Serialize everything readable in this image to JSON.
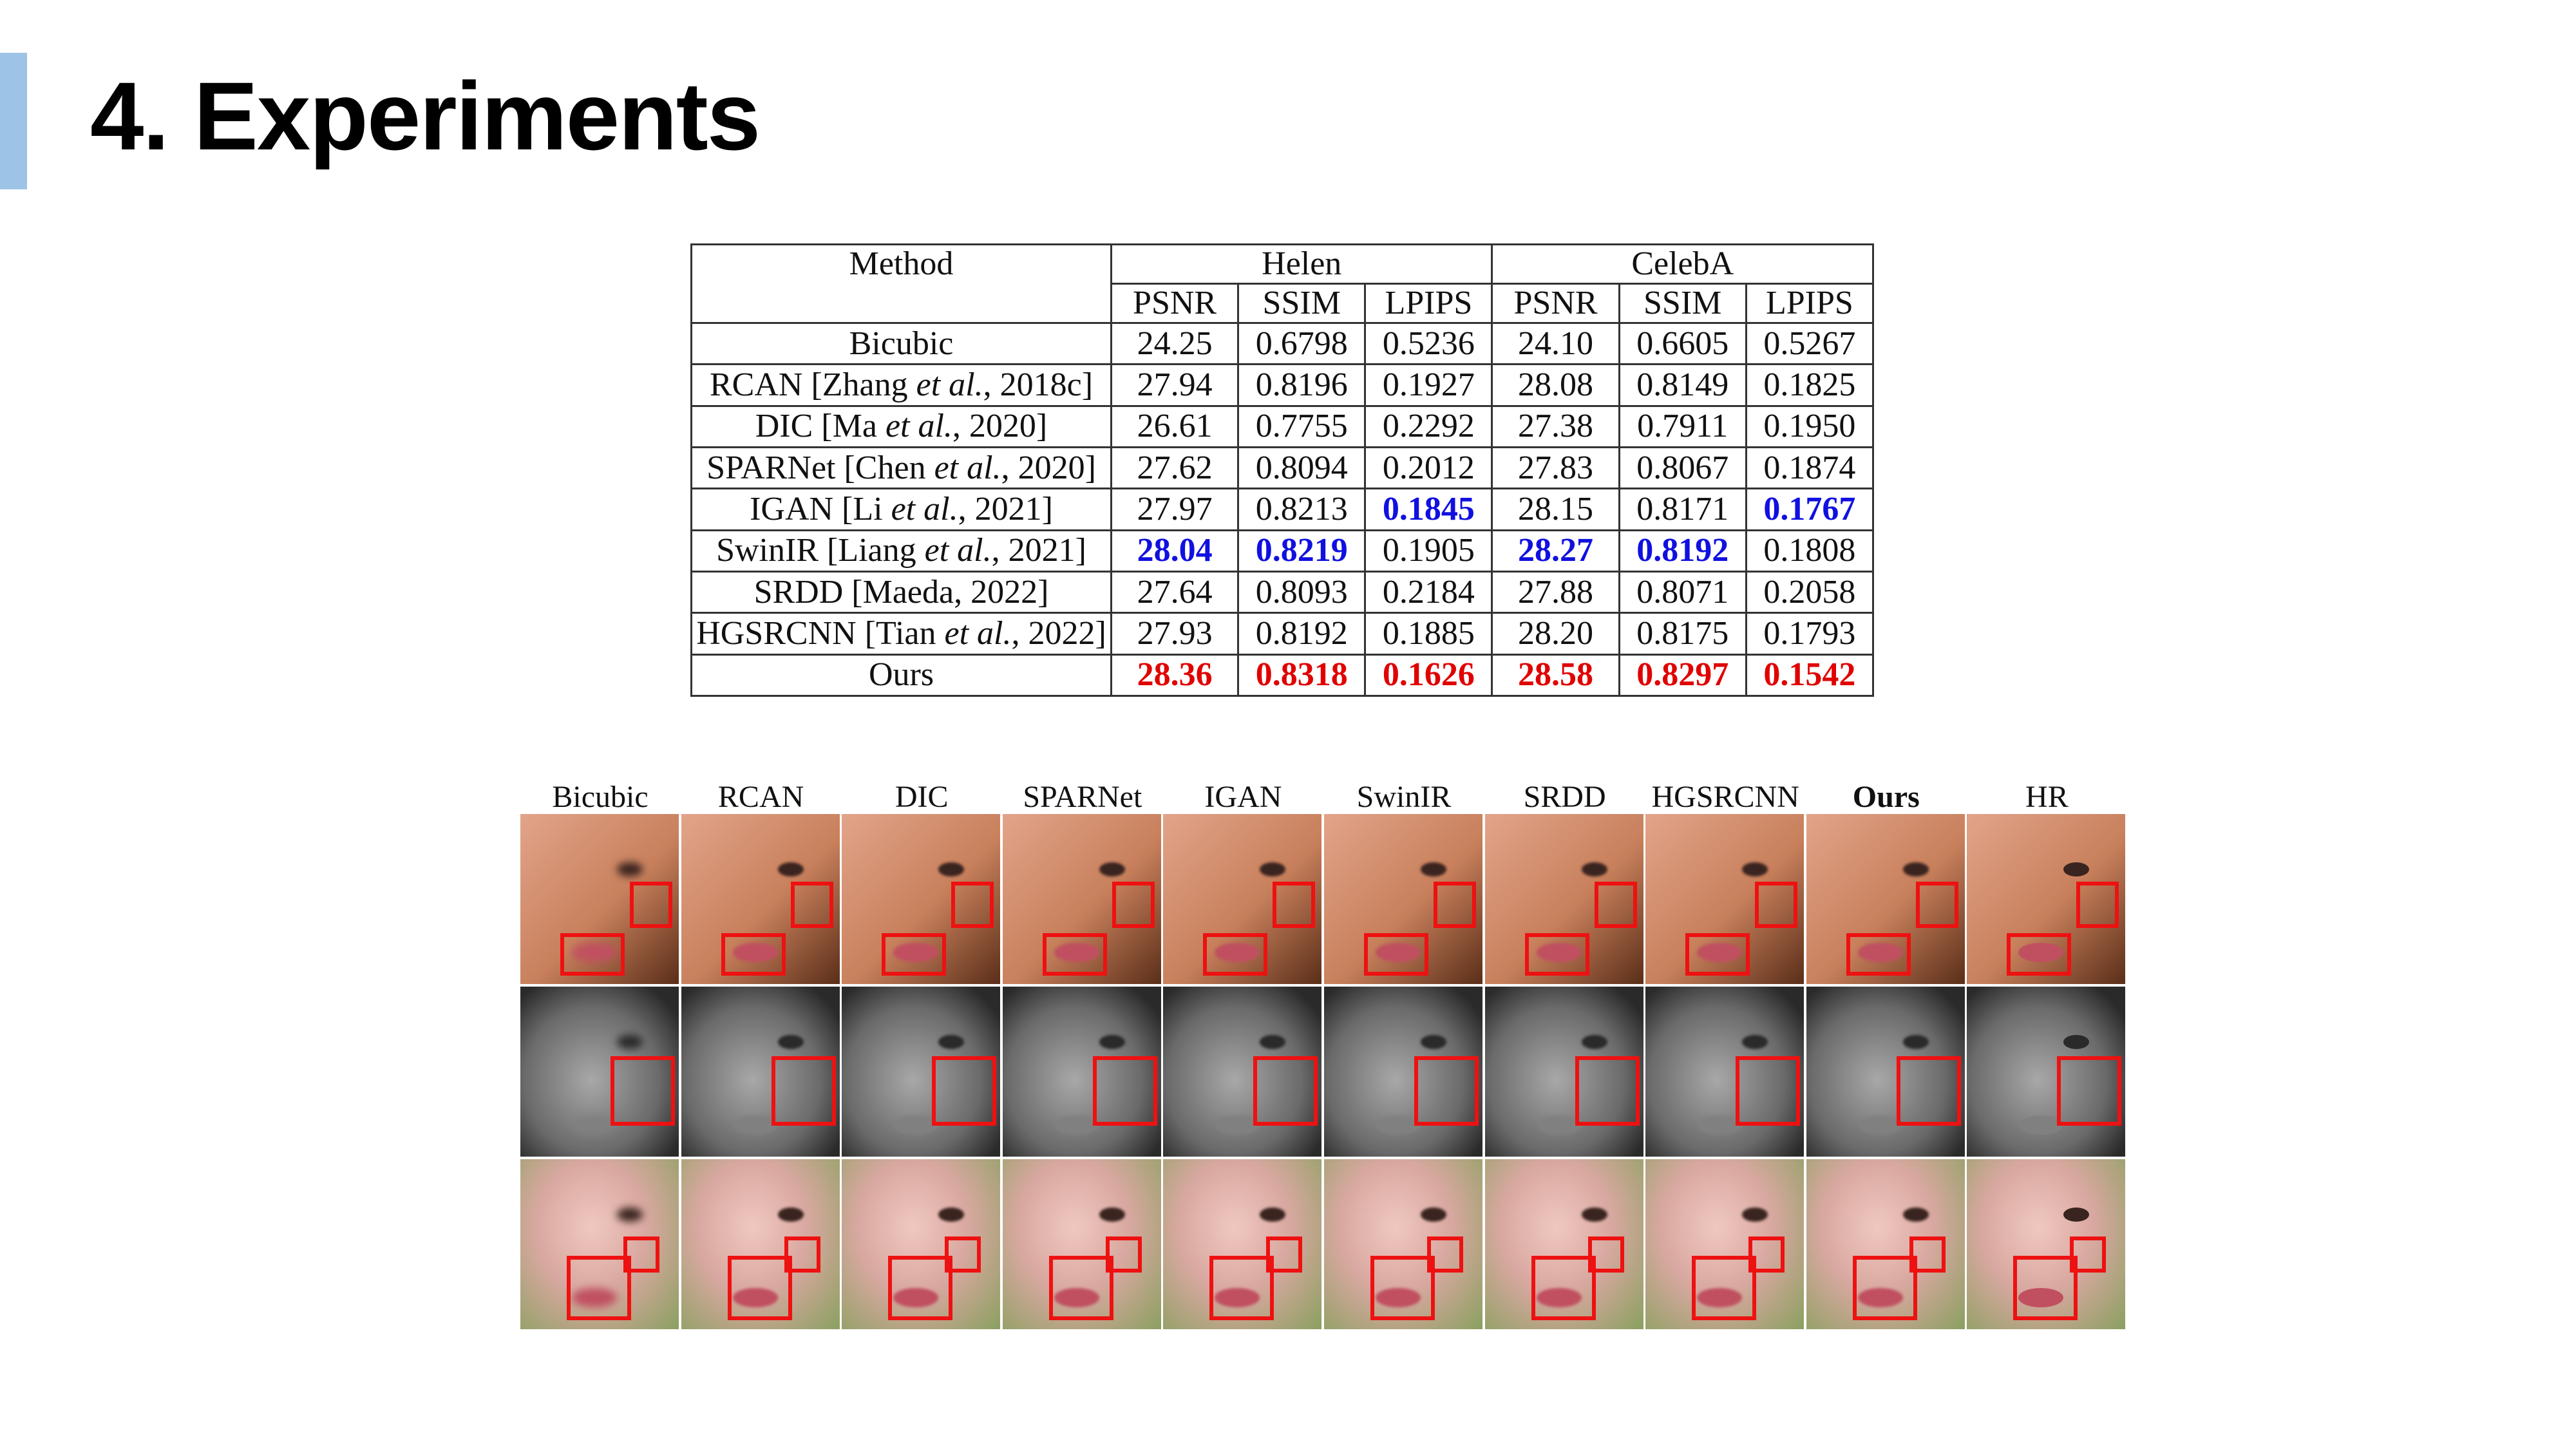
{
  "slide": {
    "title": "4. Experiments",
    "accent_color": "#9dc3e6"
  },
  "table": {
    "header": {
      "method": "Method",
      "group1": "Helen",
      "group2": "CelebA",
      "metrics": [
        "PSNR",
        "SSIM",
        "LPIPS",
        "PSNR",
        "SSIM",
        "LPIPS"
      ]
    },
    "rows": [
      {
        "method_pre": "Bicubic",
        "method_em": "",
        "method_post": "",
        "values": [
          "24.25",
          "0.6798",
          "0.5236",
          "24.10",
          "0.6605",
          "0.5267"
        ],
        "styles": [
          "",
          "",
          "",
          "",
          "",
          ""
        ]
      },
      {
        "method_pre": "RCAN [Zhang ",
        "method_em": "et al.",
        "method_post": ", 2018c]",
        "values": [
          "27.94",
          "0.8196",
          "0.1927",
          "28.08",
          "0.8149",
          "0.1825"
        ],
        "styles": [
          "",
          "",
          "",
          "",
          "",
          ""
        ]
      },
      {
        "method_pre": "DIC [Ma ",
        "method_em": "et al.",
        "method_post": ", 2020]",
        "values": [
          "26.61",
          "0.7755",
          "0.2292",
          "27.38",
          "0.7911",
          "0.1950"
        ],
        "styles": [
          "",
          "",
          "",
          "",
          "",
          ""
        ]
      },
      {
        "method_pre": "SPARNet [Chen ",
        "method_em": "et al.",
        "method_post": ", 2020]",
        "values": [
          "27.62",
          "0.8094",
          "0.2012",
          "27.83",
          "0.8067",
          "0.1874"
        ],
        "styles": [
          "",
          "",
          "",
          "",
          "",
          ""
        ]
      },
      {
        "method_pre": "IGAN [Li ",
        "method_em": "et al.",
        "method_post": ", 2021]",
        "values": [
          "27.97",
          "0.8213",
          "0.1845",
          "28.15",
          "0.8171",
          "0.1767"
        ],
        "styles": [
          "",
          "",
          "second",
          "",
          "",
          "second"
        ]
      },
      {
        "method_pre": "SwinIR [Liang ",
        "method_em": "et al.",
        "method_post": ", 2021]",
        "values": [
          "28.04",
          "0.8219",
          "0.1905",
          "28.27",
          "0.8192",
          "0.1808"
        ],
        "styles": [
          "second",
          "second",
          "",
          "second",
          "second",
          ""
        ]
      },
      {
        "method_pre": "SRDD [Maeda, 2022]",
        "method_em": "",
        "method_post": "",
        "values": [
          "27.64",
          "0.8093",
          "0.2184",
          "27.88",
          "0.8071",
          "0.2058"
        ],
        "styles": [
          "",
          "",
          "",
          "",
          "",
          ""
        ]
      },
      {
        "method_pre": "HGSRCNN [Tian ",
        "method_em": "et al.",
        "method_post": ", 2022]",
        "values": [
          "27.93",
          "0.8192",
          "0.1885",
          "28.20",
          "0.8175",
          "0.1793"
        ],
        "styles": [
          "",
          "",
          "",
          "",
          "",
          ""
        ]
      },
      {
        "method_pre": "Ours",
        "method_em": "",
        "method_post": "",
        "values": [
          "28.36",
          "0.8318",
          "0.1626",
          "28.58",
          "0.8297",
          "0.1542"
        ],
        "styles": [
          "best",
          "best",
          "best",
          "best",
          "best",
          "best"
        ]
      }
    ]
  },
  "comparison": {
    "column_labels": [
      "Bicubic",
      "RCAN",
      "DIC",
      "SPARNet",
      "IGAN",
      "SwinIR",
      "SRDD",
      "HGSRCNN",
      "Ours",
      "HR"
    ],
    "bold_label": "Ours",
    "rows": [
      {
        "palette": "warm",
        "bg": "#c8805c",
        "hair": "#5a2e18",
        "skin": "#e2a48a"
      },
      {
        "palette": "gray",
        "bg": "#2a2a2a",
        "hair": "#3a3a3a",
        "skin": "#a8a8a8"
      },
      {
        "palette": "pastel",
        "bg": "#8aa060",
        "hair": "#e8c0b0",
        "skin": "#f0c8c0"
      }
    ],
    "highlight_color": "#ee1111"
  }
}
